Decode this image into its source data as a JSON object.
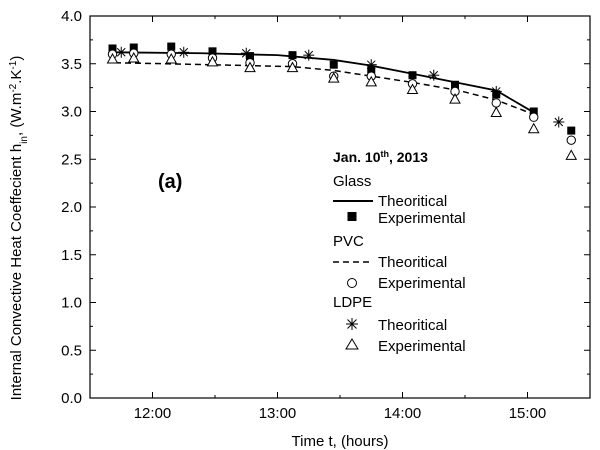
{
  "chart_data": {
    "type": "line",
    "panel_label": "(a)",
    "xlabel": "Time t, (hours)",
    "ylabel": "Internal Convective Heat Coeffecient h",
    "ylabel_sub": "in",
    "ylabel_units": ", (W.m",
    "ylabel_sup1": "-2",
    "ylabel_mid": ".K",
    "ylabel_sup2": "-1",
    "ylabel_end": ")",
    "xlim": [
      11.5,
      15.5
    ],
    "ylim": [
      0.0,
      4.0
    ],
    "xticks": [
      {
        "value": 12,
        "label": "12:00"
      },
      {
        "value": 13,
        "label": "13:00"
      },
      {
        "value": 14,
        "label": "14:00"
      },
      {
        "value": 15,
        "label": "15:00"
      }
    ],
    "yticks": [
      {
        "value": 0.0,
        "label": "0.0"
      },
      {
        "value": 0.5,
        "label": "0.5"
      },
      {
        "value": 1.0,
        "label": "1.0"
      },
      {
        "value": 1.5,
        "label": "1.5"
      },
      {
        "value": 2.0,
        "label": "2.0"
      },
      {
        "value": 2.5,
        "label": "2.5"
      },
      {
        "value": 3.0,
        "label": "3.0"
      },
      {
        "value": 3.5,
        "label": "3.5"
      },
      {
        "value": 4.0,
        "label": "4.0"
      }
    ],
    "legend": {
      "date_main": "Jan. 10",
      "date_sup": "th",
      "date_end": ", 2013",
      "groups": [
        {
          "name": "Glass",
          "theoretical": "Theoritical",
          "experimental": "Experimental"
        },
        {
          "name": "PVC",
          "theoretical": "Theoritical",
          "experimental": "Experimental"
        },
        {
          "name": "LDPE",
          "theoretical": "Theoritical",
          "experimental": "Experimental"
        }
      ]
    },
    "series": [
      {
        "name": "Glass Theoritical",
        "style": "solid-line",
        "x": [
          11.7,
          12.4,
          13.0,
          13.45,
          13.75,
          14.1,
          14.75,
          15.05
        ],
        "y": [
          3.62,
          3.61,
          3.59,
          3.54,
          3.48,
          3.39,
          3.22,
          2.99
        ]
      },
      {
        "name": "Glass Experimental",
        "style": "filled-square",
        "x": [
          11.68,
          11.85,
          12.15,
          12.48,
          12.78,
          13.12,
          13.45,
          13.75,
          14.08,
          14.42,
          14.75,
          15.05,
          15.35
        ],
        "y": [
          3.66,
          3.67,
          3.68,
          3.63,
          3.58,
          3.59,
          3.49,
          3.44,
          3.38,
          3.28,
          3.18,
          3.0,
          2.8
        ]
      },
      {
        "name": "PVC Theoritical",
        "style": "dashed-line",
        "x": [
          11.7,
          12.1,
          12.8,
          13.12,
          13.45,
          14.1,
          14.45,
          14.75,
          15.05
        ],
        "y": [
          3.51,
          3.5,
          3.48,
          3.47,
          3.43,
          3.3,
          3.22,
          3.12,
          2.97
        ]
      },
      {
        "name": "PVC Experimental",
        "style": "open-circle",
        "x": [
          11.68,
          11.85,
          12.15,
          12.48,
          12.78,
          13.12,
          13.45,
          13.75,
          14.08,
          14.42,
          14.75,
          15.05,
          15.35
        ],
        "y": [
          3.6,
          3.61,
          3.6,
          3.56,
          3.51,
          3.5,
          3.37,
          3.37,
          3.29,
          3.21,
          3.09,
          2.94,
          2.7
        ]
      },
      {
        "name": "LDPE Theoritical",
        "style": "asterisk",
        "x": [
          11.75,
          12.25,
          12.75,
          13.25,
          13.75,
          14.25,
          14.75,
          15.25
        ],
        "y": [
          3.62,
          3.62,
          3.61,
          3.59,
          3.49,
          3.38,
          3.21,
          2.89
        ]
      },
      {
        "name": "LDPE Experimental",
        "style": "open-triangle",
        "x": [
          11.68,
          11.85,
          12.15,
          12.48,
          12.78,
          13.12,
          13.45,
          13.75,
          14.08,
          14.42,
          14.75,
          15.05,
          15.35
        ],
        "y": [
          3.55,
          3.56,
          3.55,
          3.52,
          3.46,
          3.46,
          3.35,
          3.31,
          3.23,
          3.13,
          2.99,
          2.82,
          2.54
        ]
      }
    ]
  }
}
